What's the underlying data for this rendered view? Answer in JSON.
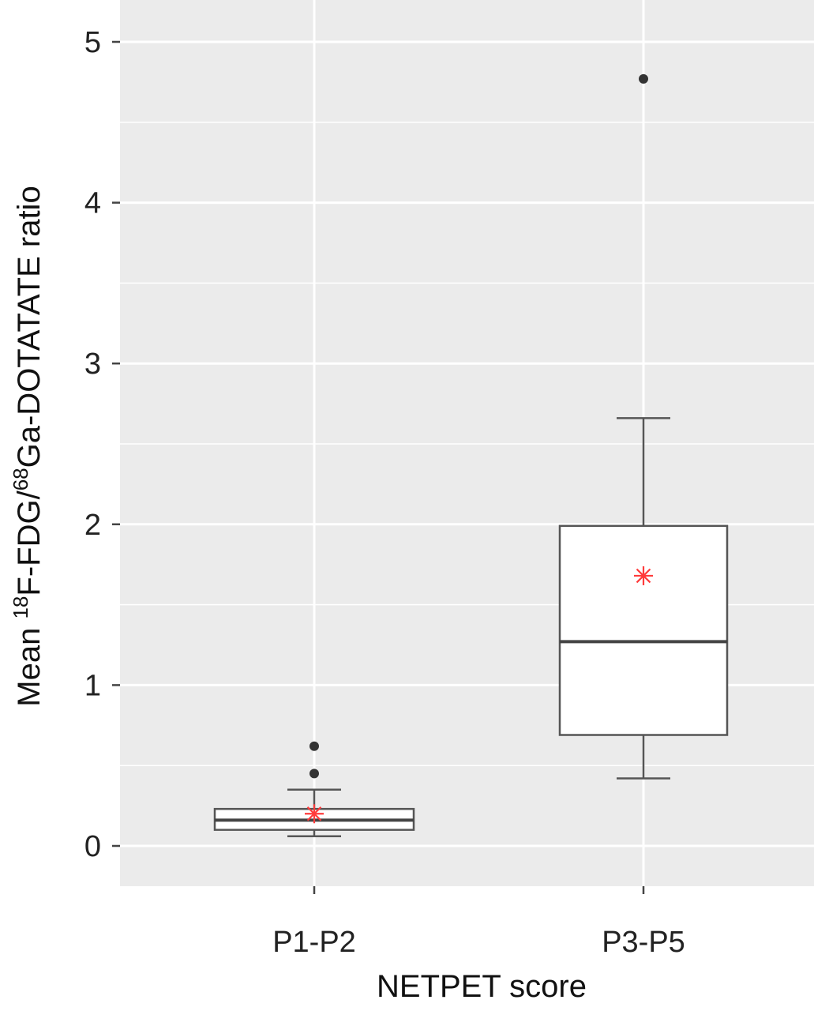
{
  "chart_data": {
    "type": "boxplot",
    "title": "",
    "xlabel": "NETPET score",
    "ylabel": {
      "prefix": "Mean ",
      "sup1": "18",
      "mid": "F-FDG/",
      "sup2": "68",
      "suffix": "Ga-DOTATATE ratio"
    },
    "ylim": [
      -0.25,
      5.25
    ],
    "yticks": [
      0,
      1,
      2,
      3,
      4,
      5
    ],
    "yticks_labels": [
      "0",
      "1",
      "2",
      "3",
      "4",
      "5"
    ],
    "grid": true,
    "categories": [
      "P1-P2",
      "P3-P5"
    ],
    "series": [
      {
        "category": "P1-P2",
        "whisker_low": 0.06,
        "q1": 0.1,
        "median": 0.16,
        "q3": 0.23,
        "whisker_high": 0.35,
        "mean": 0.2,
        "outliers": [
          0.45,
          0.62
        ]
      },
      {
        "category": "P3-P5",
        "whisker_low": 0.42,
        "q1": 0.69,
        "median": 1.27,
        "q3": 1.99,
        "whisker_high": 2.66,
        "mean": 1.68,
        "outliers": [
          4.77
        ]
      }
    ],
    "colors": {
      "panel": "#ebebeb",
      "grid": "#ffffff",
      "box_fill": "#ffffff",
      "box_stroke": "#555555",
      "mean_marker": "#ff3b3b",
      "outlier": "#333333"
    }
  }
}
